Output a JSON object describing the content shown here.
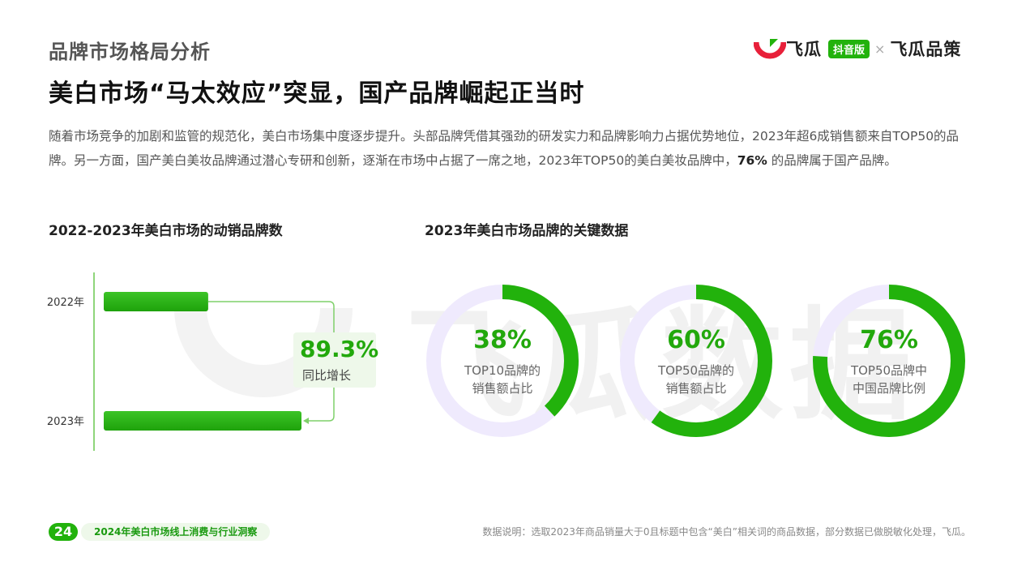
{
  "header": {
    "section_title": "品牌市场格局分析",
    "headline": "美白市场“马太效应”突显，国产品牌崛起正当时",
    "intro_1": "随着市场竞争的加剧和监管的规范化，美白市场集中度逐步提升。头部品牌凭借其强劲的研发实力和品牌影响力占据优势地位，2023年超6成销售额来自TOP50的品牌。另一方面，国产美白美妆品牌通过潜心专研和创新，逐渐在市场中占据了一席之地，2023年TOP50的美白美妆品牌中，",
    "intro_bold": "76%",
    "intro_2": " 的品牌属于国产品牌。"
  },
  "logo": {
    "brand_left": "飞瓜",
    "badge": "抖音版",
    "times": "×",
    "brand_right": "飞瓜品策",
    "accent": "#22b20c",
    "mark_color": "#e8203a",
    "icon": "feigua-logo-icon"
  },
  "watermark": "飞瓜数据",
  "left_chart": {
    "title": "2022-2023年美白市场的动销品牌数",
    "callout_value": "89.3%",
    "callout_label": "同比增长"
  },
  "right_chart": {
    "title": "2023年美白市场品牌的关键数据"
  },
  "chart_data": [
    {
      "type": "bar",
      "orientation": "horizontal",
      "categories": [
        "2022年",
        "2023年"
      ],
      "values": [
        1,
        1.893
      ],
      "annotation": "89.3% 同比增长"
    },
    {
      "type": "pie",
      "style": "donut",
      "items": [
        {
          "value": 38,
          "label": "38%",
          "desc_1": "TOP10品牌的",
          "desc_2": "销售额占比"
        },
        {
          "value": 60,
          "label": "60%",
          "desc_1": "TOP50品牌的",
          "desc_2": "销售额占比"
        },
        {
          "value": 76,
          "label": "76%",
          "desc_1": "TOP50品牌中",
          "desc_2": "中国品牌比例"
        }
      ],
      "color": "#22b20c",
      "track_color": "#efeafd"
    }
  ],
  "footer": {
    "page_number": "24",
    "report_title": "2024年美白市场线上消费与行业洞察",
    "note": "数据说明：选取2023年商品销量大于0且标题中包含“美白”相关词的商品数据，部分数据已做脱敏化处理，飞瓜。"
  }
}
